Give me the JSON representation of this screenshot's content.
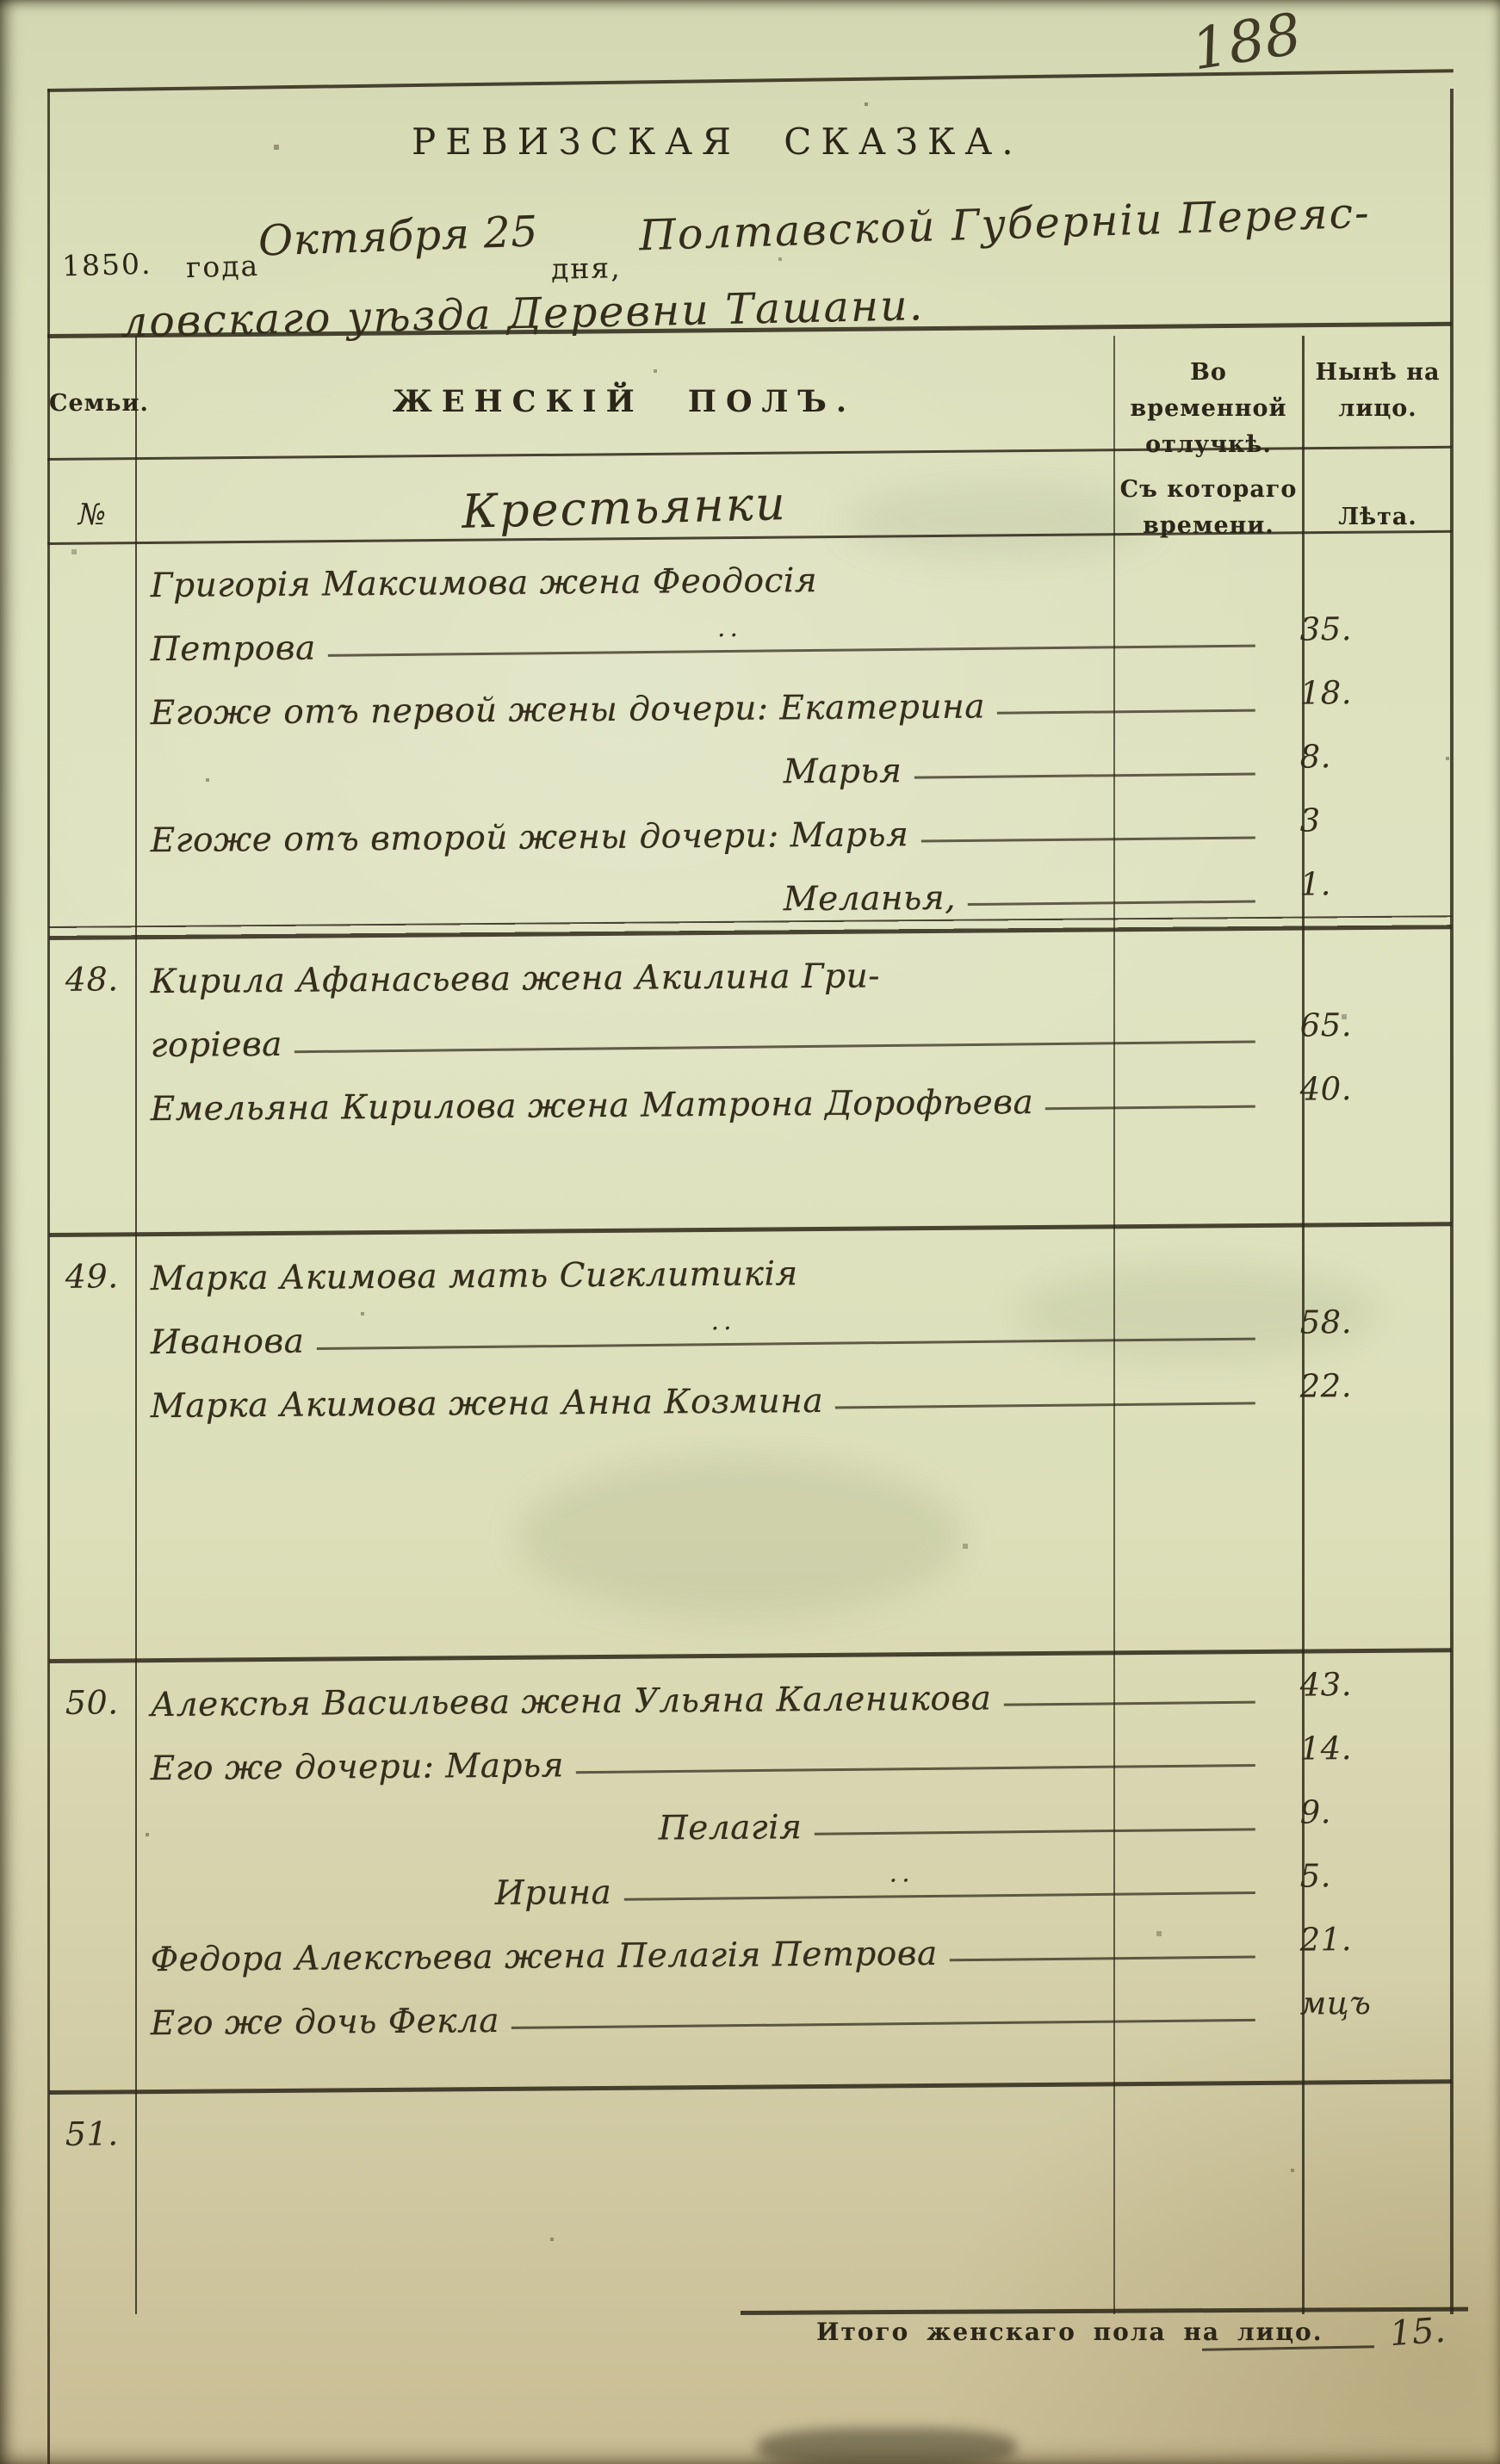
{
  "page_number": "188",
  "title": "РЕВИЗСКАЯ  СКАЗКА.",
  "date_line": {
    "year": "1850.",
    "year_label": "года",
    "date_value": "Октября 25",
    "day_label": "дня,",
    "place_line1": "Полтавской Губерніи Переяс-",
    "place_line2": "ловскаго уѣзда Деревни Ташани."
  },
  "colors": {
    "paper": "#dde1bd",
    "ink": "#2b2619",
    "hand": "#342d1c",
    "line": "#2c2717"
  },
  "table": {
    "headers": {
      "col_family": "Семьи.",
      "col_main": "ЖЕНСКІЙ ПОЛЪ.",
      "col_absence_line1": "Во временной",
      "col_absence_line2": "отлучкѣ.",
      "col_present_line1": "Нынѣ на",
      "col_present_line2": "лицо.",
      "col_no": "№",
      "col_main2": "Крестьянки",
      "col_since_line1": "Съ котораго",
      "col_since_line2": "времени.",
      "col_age": "Лѣта."
    },
    "rows": [
      {
        "no": "",
        "text": "Григорія Максимова жена Феодосія"
      },
      {
        "text": "Петрова",
        "dash": true,
        "mark": "··",
        "age": "35."
      },
      {
        "text": "Егоже отъ первой жены дочери: Екатерина",
        "dash": true,
        "age": "18."
      },
      {
        "text": "Марья",
        "indent": 3,
        "dash": true,
        "age": "8."
      },
      {
        "text": "Егоже отъ второй жены дочери: Марья",
        "dash": true,
        "age": "3"
      },
      {
        "text": "Меланья,",
        "indent": 3,
        "dash": true,
        "age": "1."
      },
      {
        "rule": "double"
      },
      {
        "no": "48.",
        "text": "Кирила Афанасьева жена Акилина Гри-"
      },
      {
        "text": "горіева",
        "dash": true,
        "age": "65."
      },
      {
        "text": "Емельяна Кирилова жена Матрона Дорофѣева",
        "dash": true,
        "age": "40."
      },
      {
        "gap": "m"
      },
      {
        "rule": "single"
      },
      {
        "no": "49.",
        "text": "Марка Акимова мать Сигклитикія"
      },
      {
        "text": "Иванова",
        "dash": true,
        "mark": "··",
        "age": "58."
      },
      {
        "text": "Марка Акимова жена Анна Козмина",
        "dash": true,
        "age": "22."
      },
      {
        "gap": "l"
      },
      {
        "rule": "single"
      },
      {
        "no": "50.",
        "text": "Алексѣя Васильева жена Ульяна Каленикова",
        "dash": true,
        "age": "43."
      },
      {
        "text": "Его же дочери: Марья",
        "dash": true,
        "age": "14."
      },
      {
        "text": "Пелагія",
        "indent": 2,
        "dash": true,
        "age": "9."
      },
      {
        "text": "Ирина",
        "indent": 1,
        "dash": true,
        "mark": "··",
        "age": "5."
      },
      {
        "text": "Федора Алексѣева жена Пелагія Петрова",
        "dash": true,
        "age": "21."
      },
      {
        "text": "Его же дочь Фекла",
        "dash": true,
        "age": "мцъ"
      },
      {
        "gap": "s"
      },
      {
        "rule": "single"
      },
      {
        "no": "51.",
        "text": ""
      }
    ]
  },
  "footer": {
    "total_label": "Итого женскаго пола на лицо.",
    "total_value": "15."
  }
}
